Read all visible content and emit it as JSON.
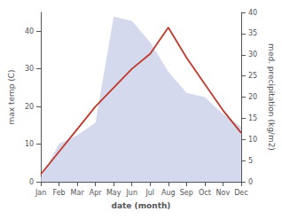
{
  "chart_data": {
    "type": "line",
    "xlabel": "date (month)",
    "ylabel": "max temp (C)",
    "y2label": "med. precipitation (kg/m2)",
    "categories": [
      "Jan",
      "Feb",
      "Mar",
      "Apr",
      "May",
      "Jun",
      "Jul",
      "Aug",
      "Sep",
      "Oct",
      "Nov",
      "Dec"
    ],
    "series": [
      {
        "type": "area",
        "axis": "y2",
        "color": "#c5cce8",
        "values": [
          1,
          9,
          11,
          14,
          39,
          38,
          33,
          26,
          21,
          20,
          16,
          13
        ]
      },
      {
        "type": "line",
        "color": "#c0392b",
        "values": [
          2,
          8,
          14,
          20,
          25,
          30,
          34,
          41,
          33,
          26,
          19,
          13
        ]
      }
    ],
    "ylim": [
      0,
      45
    ],
    "yticks": [
      0,
      10,
      20,
      30,
      40
    ],
    "y2lim": [
      0,
      40
    ],
    "y2ticks": [
      0,
      5,
      10,
      15,
      20,
      25,
      30,
      35,
      40
    ],
    "grid": false
  }
}
